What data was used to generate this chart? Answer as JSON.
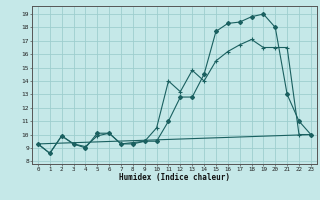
{
  "xlabel": "Humidex (Indice chaleur)",
  "bg_color": "#c5e8e8",
  "grid_color": "#9ecece",
  "line_color": "#1a6060",
  "xlim": [
    -0.5,
    23.5
  ],
  "ylim": [
    7.8,
    19.6
  ],
  "xticks": [
    0,
    1,
    2,
    3,
    4,
    5,
    6,
    7,
    8,
    9,
    10,
    11,
    12,
    13,
    14,
    15,
    16,
    17,
    18,
    19,
    20,
    21,
    22,
    23
  ],
  "yticks": [
    8,
    9,
    10,
    11,
    12,
    13,
    14,
    15,
    16,
    17,
    18,
    19
  ],
  "line1_x": [
    0,
    1,
    2,
    3,
    4,
    5,
    6,
    7,
    8,
    9,
    10,
    11,
    12,
    13,
    14,
    15,
    16,
    17,
    18,
    19,
    20,
    21,
    22,
    23
  ],
  "line1_y": [
    9.3,
    8.6,
    9.9,
    9.3,
    9.0,
    10.1,
    10.1,
    9.3,
    9.3,
    9.5,
    9.5,
    11.0,
    12.8,
    12.8,
    14.5,
    17.7,
    18.3,
    18.4,
    18.8,
    19.0,
    18.0,
    13.0,
    11.0,
    10.0
  ],
  "line2_x": [
    0,
    1,
    2,
    3,
    4,
    5,
    6,
    7,
    8,
    9,
    10,
    11,
    12,
    13,
    14,
    15,
    16,
    17,
    18,
    19,
    20,
    21,
    22,
    23
  ],
  "line2_y": [
    9.3,
    8.6,
    9.9,
    9.3,
    9.1,
    9.9,
    10.1,
    9.3,
    9.4,
    9.5,
    10.5,
    14.0,
    13.2,
    14.8,
    14.0,
    15.5,
    16.2,
    16.7,
    17.1,
    16.5,
    16.5,
    16.5,
    10.0,
    10.0
  ],
  "line3_x": [
    0,
    23
  ],
  "line3_y": [
    9.3,
    10.0
  ]
}
